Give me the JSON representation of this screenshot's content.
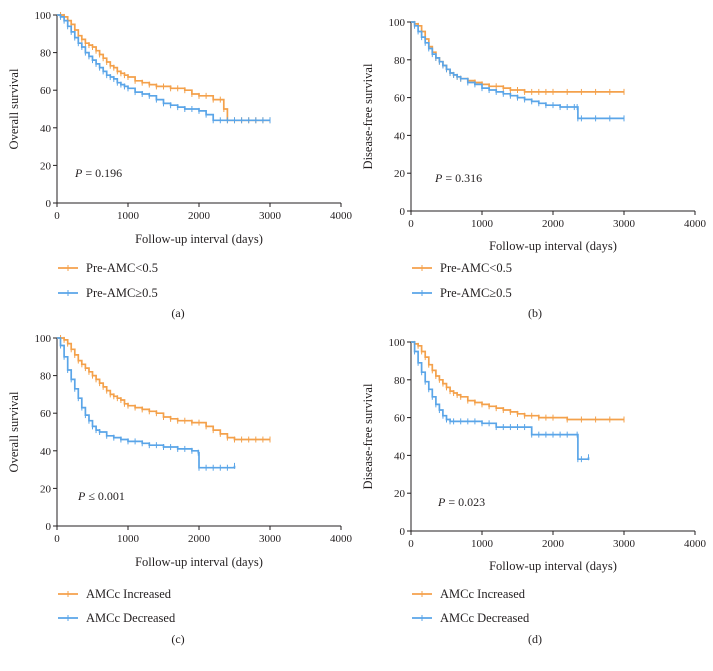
{
  "chart_data": [
    {
      "type": "line",
      "panel": "a",
      "caption": "(a)",
      "xlabel": "Follow-up interval (days)",
      "ylabel": "Overall survival",
      "xlim": [
        0,
        4000
      ],
      "ylim": [
        0,
        100
      ],
      "xticks": [
        "0",
        "1000",
        "2000",
        "3000",
        "4000"
      ],
      "yticks": [
        "0",
        "20",
        "40",
        "60",
        "80",
        "100"
      ],
      "p_letter": "P",
      "p_rest": " = 0.196",
      "series": [
        {
          "name": "Pre-AMC<0.5",
          "color": "#f4a14b",
          "x": [
            0,
            50,
            100,
            150,
            200,
            250,
            300,
            350,
            400,
            450,
            500,
            550,
            600,
            650,
            700,
            750,
            800,
            850,
            900,
            950,
            1000,
            1100,
            1200,
            1300,
            1400,
            1500,
            1600,
            1700,
            1800,
            1900,
            2000,
            2100,
            2200,
            2300,
            2350,
            2400,
            2500,
            2600,
            2700,
            2800,
            2900,
            3000
          ],
          "y": [
            100,
            100,
            99,
            97,
            95,
            92,
            89,
            87,
            85,
            84,
            83,
            81,
            79,
            77,
            75,
            73,
            72,
            70,
            69,
            68,
            67,
            65,
            64,
            63,
            62,
            62,
            61,
            61,
            60,
            58,
            57,
            57,
            55,
            55,
            50,
            44,
            44,
            44,
            44,
            44,
            44,
            44
          ]
        },
        {
          "name": "Pre-AMC≥0.5",
          "color": "#5aa5e8",
          "x": [
            0,
            50,
            100,
            150,
            200,
            250,
            300,
            350,
            400,
            450,
            500,
            550,
            600,
            650,
            700,
            750,
            800,
            850,
            900,
            950,
            1000,
            1100,
            1200,
            1300,
            1400,
            1500,
            1600,
            1700,
            1800,
            1900,
            2000,
            2100,
            2200,
            2300,
            2400,
            2500,
            2600,
            2700,
            2800,
            2900,
            3000
          ],
          "y": [
            100,
            99,
            97,
            94,
            91,
            88,
            85,
            83,
            80,
            78,
            76,
            74,
            72,
            70,
            68,
            67,
            66,
            64,
            63,
            62,
            61,
            59,
            58,
            57,
            55,
            53,
            52,
            51,
            50,
            50,
            49,
            47,
            44,
            44,
            44,
            44,
            44,
            44,
            44,
            44,
            44
          ]
        }
      ]
    },
    {
      "type": "line",
      "panel": "b",
      "caption": "(b)",
      "xlabel": "Follow-up interval (days)",
      "ylabel": "Disease-free survival",
      "xlim": [
        0,
        4000
      ],
      "ylim": [
        0,
        100
      ],
      "xticks": [
        "0",
        "1000",
        "2000",
        "3000",
        "4000"
      ],
      "yticks": [
        "0",
        "20",
        "40",
        "60",
        "80",
        "100"
      ],
      "p_letter": "P",
      "p_rest": " = 0.316",
      "series": [
        {
          "name": "Pre-AMC<0.5",
          "color": "#f4a14b",
          "x": [
            0,
            50,
            100,
            150,
            200,
            250,
            300,
            350,
            400,
            450,
            500,
            550,
            600,
            650,
            700,
            800,
            900,
            1000,
            1100,
            1200,
            1300,
            1400,
            1500,
            1600,
            1700,
            1800,
            1900,
            2000,
            2200,
            2400,
            2600,
            2800,
            3000
          ],
          "y": [
            100,
            99,
            98,
            95,
            91,
            87,
            84,
            81,
            79,
            77,
            75,
            73,
            72,
            71,
            70,
            69,
            68,
            67,
            66,
            66,
            65,
            64,
            64,
            63,
            63,
            63,
            63,
            63,
            63,
            63,
            63,
            63,
            63
          ]
        },
        {
          "name": "Pre-AMC≥0.5",
          "color": "#5aa5e8",
          "x": [
            0,
            50,
            100,
            150,
            200,
            250,
            300,
            350,
            400,
            450,
            500,
            550,
            600,
            650,
            700,
            800,
            900,
            1000,
            1100,
            1200,
            1300,
            1400,
            1500,
            1600,
            1700,
            1800,
            1900,
            2000,
            2100,
            2200,
            2300,
            2340,
            2350,
            2400,
            2600,
            2800,
            3000
          ],
          "y": [
            100,
            98,
            95,
            92,
            89,
            86,
            83,
            81,
            79,
            77,
            75,
            73,
            72,
            71,
            70,
            68,
            67,
            65,
            64,
            63,
            62,
            61,
            60,
            59,
            58,
            57,
            56,
            56,
            55,
            55,
            55,
            55,
            49,
            49,
            49,
            49,
            49
          ]
        }
      ]
    },
    {
      "type": "line",
      "panel": "c",
      "caption": "(c)",
      "xlabel": "Follow-up interval (days)",
      "ylabel": "Overall survival",
      "xlim": [
        0,
        4000
      ],
      "ylim": [
        0,
        100
      ],
      "xticks": [
        "0",
        "1000",
        "2000",
        "3000",
        "4000"
      ],
      "yticks": [
        "0",
        "20",
        "40",
        "60",
        "80",
        "100"
      ],
      "p_letter": "P",
      "p_rest": " ≤ 0.001",
      "series": [
        {
          "name": "AMCc Increased",
          "color": "#f4a14b",
          "x": [
            0,
            50,
            100,
            150,
            200,
            250,
            300,
            350,
            400,
            450,
            500,
            550,
            600,
            650,
            700,
            750,
            800,
            850,
            900,
            950,
            1000,
            1100,
            1200,
            1300,
            1400,
            1500,
            1600,
            1700,
            1800,
            1900,
            2000,
            2100,
            2200,
            2300,
            2400,
            2500,
            2600,
            2700,
            2800,
            2900,
            3000
          ],
          "y": [
            100,
            100,
            99,
            97,
            94,
            91,
            88,
            86,
            84,
            82,
            80,
            78,
            76,
            74,
            72,
            70,
            69,
            68,
            67,
            65,
            64,
            63,
            62,
            61,
            60,
            58,
            57,
            56,
            56,
            55,
            55,
            53,
            51,
            49,
            47,
            46,
            46,
            46,
            46,
            46,
            46
          ]
        },
        {
          "name": "AMCc Decreased",
          "color": "#5aa5e8",
          "x": [
            0,
            50,
            100,
            150,
            200,
            250,
            300,
            350,
            400,
            450,
            500,
            550,
            600,
            700,
            800,
            900,
            1000,
            1100,
            1200,
            1300,
            1400,
            1500,
            1600,
            1700,
            1800,
            1900,
            1990,
            2000,
            2100,
            2200,
            2300,
            2400,
            2500
          ],
          "y": [
            100,
            96,
            90,
            83,
            78,
            73,
            68,
            63,
            59,
            56,
            53,
            51,
            50,
            48,
            47,
            46,
            45,
            45,
            44,
            43,
            43,
            42,
            42,
            41,
            41,
            40,
            39,
            31,
            31,
            31,
            31,
            31,
            32
          ]
        }
      ]
    },
    {
      "type": "line",
      "panel": "d",
      "caption": "(d)",
      "xlabel": "Follow-up interval (days)",
      "ylabel": "Disease-free survival",
      "xlim": [
        0,
        4000
      ],
      "ylim": [
        0,
        100
      ],
      "xticks": [
        "0",
        "1000",
        "2000",
        "3000",
        "4000"
      ],
      "yticks": [
        "0",
        "20",
        "40",
        "60",
        "80",
        "100"
      ],
      "p_letter": "P",
      "p_rest": " = 0.023",
      "series": [
        {
          "name": "AMCc Increased",
          "color": "#f4a14b",
          "x": [
            0,
            50,
            100,
            150,
            200,
            250,
            300,
            350,
            400,
            450,
            500,
            550,
            600,
            650,
            700,
            800,
            900,
            1000,
            1100,
            1200,
            1300,
            1400,
            1500,
            1600,
            1700,
            1800,
            1900,
            2000,
            2200,
            2400,
            2600,
            2800,
            3000
          ],
          "y": [
            100,
            99,
            98,
            95,
            92,
            88,
            85,
            82,
            80,
            78,
            76,
            74,
            73,
            72,
            71,
            69,
            68,
            67,
            66,
            65,
            64,
            63,
            62,
            61,
            61,
            60,
            60,
            60,
            59,
            59,
            59,
            59,
            59
          ]
        },
        {
          "name": "AMCc Decreased",
          "color": "#5aa5e8",
          "x": [
            0,
            50,
            100,
            150,
            200,
            250,
            300,
            350,
            400,
            450,
            500,
            550,
            600,
            700,
            800,
            900,
            1000,
            1100,
            1200,
            1300,
            1400,
            1500,
            1600,
            1700,
            1800,
            1900,
            2000,
            2100,
            2200,
            2340,
            2350,
            2400,
            2500
          ],
          "y": [
            100,
            95,
            89,
            84,
            79,
            75,
            71,
            67,
            64,
            61,
            59,
            58,
            58,
            58,
            58,
            58,
            57,
            57,
            55,
            55,
            55,
            55,
            55,
            51,
            51,
            51,
            51,
            51,
            51,
            51,
            38,
            38,
            39
          ]
        }
      ]
    }
  ]
}
